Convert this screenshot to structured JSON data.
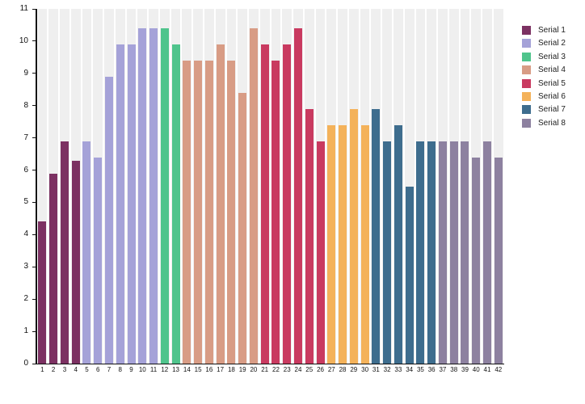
{
  "figure": {
    "background": "#ffffff",
    "band_color": "#efefef",
    "axis_color": "#111111",
    "label_color": "#111111"
  },
  "chart_data": {
    "type": "bar",
    "title": "",
    "xlabel": "",
    "ylabel": "",
    "categories": [
      "1",
      "2",
      "3",
      "4",
      "5",
      "6",
      "7",
      "8",
      "9",
      "10",
      "11",
      "12",
      "13",
      "14",
      "15",
      "16",
      "17",
      "18",
      "19",
      "20",
      "21",
      "22",
      "23",
      "24",
      "25",
      "26",
      "27",
      "28",
      "29",
      "30",
      "31",
      "32",
      "33",
      "34",
      "35",
      "36",
      "37",
      "38",
      "39",
      "40",
      "41",
      "42"
    ],
    "series": [
      {
        "name": "Serial 1",
        "color": "#7C3162",
        "values": [
          4.4,
          5.9,
          6.9,
          6.3
        ]
      },
      {
        "name": "Serial 2",
        "color": "#A5A2D8",
        "values": [
          6.9,
          6.4,
          8.9,
          9.9,
          9.9,
          10.4,
          10.4
        ]
      },
      {
        "name": "Serial 3",
        "color": "#4FC48C",
        "values": [
          10.4,
          9.9
        ]
      },
      {
        "name": "Serial 4",
        "color": "#D89C85",
        "values": [
          9.4,
          9.4,
          9.4,
          9.9,
          9.4,
          8.4,
          10.4
        ]
      },
      {
        "name": "Serial 5",
        "color": "#C93A60",
        "values": [
          9.9,
          9.4,
          9.9,
          10.4,
          7.9,
          6.9
        ]
      },
      {
        "name": "Serial 6",
        "color": "#F4B25A",
        "values": [
          7.4,
          7.4,
          7.9,
          7.4
        ]
      },
      {
        "name": "Serial 7",
        "color": "#3E6D8E",
        "values": [
          7.9,
          6.9,
          7.4,
          5.5,
          6.9,
          6.9
        ]
      },
      {
        "name": "Serial 8",
        "color": "#8D81A0",
        "values": [
          6.9,
          6.9,
          6.9,
          6.4,
          6.9,
          6.4
        ]
      }
    ],
    "y_axis": {
      "min": 0,
      "max": 11,
      "tick_step": 1,
      "tick_labels": [
        "0",
        "1",
        "2",
        "3",
        "4",
        "5",
        "6",
        "7",
        "8",
        "9",
        "10",
        "11"
      ]
    },
    "legend": {
      "position": "right",
      "entries": [
        "Serial 1",
        "Serial 2",
        "Serial 3",
        "Serial 4",
        "Serial 5",
        "Serial 6",
        "Serial 7",
        "Serial 8"
      ]
    },
    "grid": {
      "horizontal_gridlines": false,
      "vertical_bands": true
    }
  }
}
